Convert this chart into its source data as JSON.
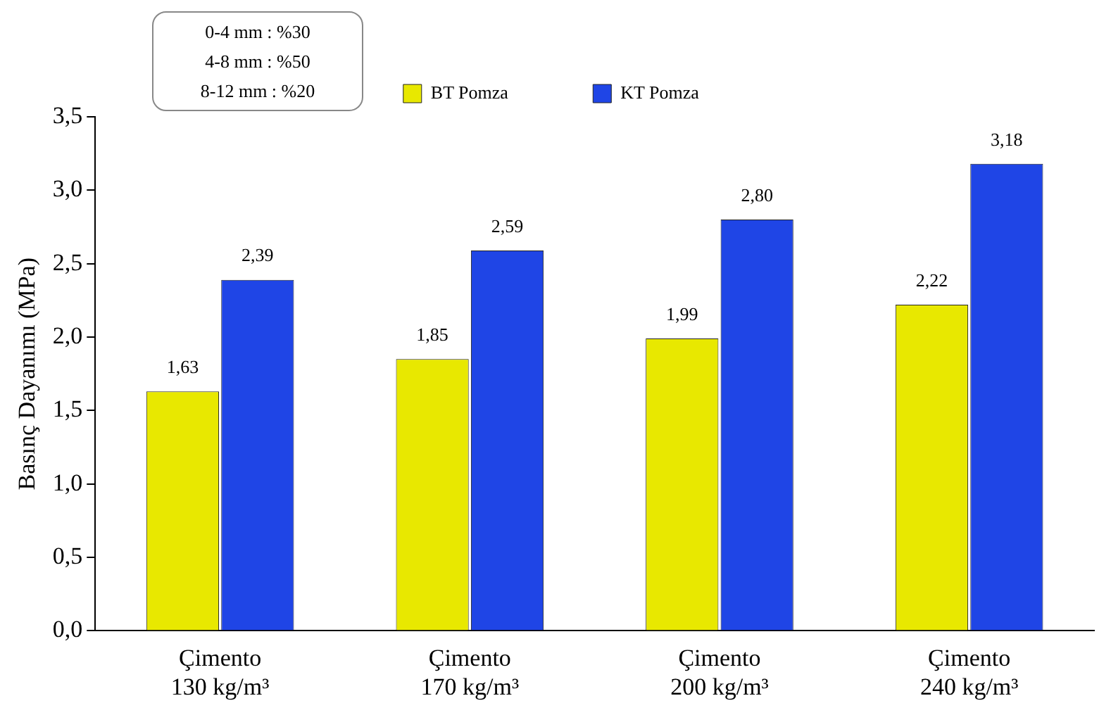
{
  "chart_data": {
    "type": "bar",
    "ylabel": "Basınç Dayanımı (MPa)",
    "categories": [
      "Çimento\n130 kg/m³",
      "Çimento\n170 kg/m³",
      "Çimento\n200 kg/m³",
      "Çimento\n240 kg/m³"
    ],
    "series": [
      {
        "name": "BT Pomza",
        "color": "#e8e800",
        "values": [
          1.63,
          1.85,
          1.99,
          2.22
        ],
        "value_labels": [
          "1,63",
          "1,85",
          "1,99",
          "2,22"
        ]
      },
      {
        "name": "KT Pomza",
        "color": "#1f45e6",
        "values": [
          2.39,
          2.59,
          2.8,
          3.18
        ],
        "value_labels": [
          "2,39",
          "2,59",
          "2,80",
          "3,18"
        ]
      }
    ],
    "ylim": [
      0,
      3.5
    ],
    "yticks": [
      {
        "value": 0,
        "label": "0,0"
      },
      {
        "value": 0.5,
        "label": "0,5"
      },
      {
        "value": 1,
        "label": "1,0"
      },
      {
        "value": 1.5,
        "label": "1,5"
      },
      {
        "value": 2,
        "label": "2,0"
      },
      {
        "value": 2.5,
        "label": "2,5"
      },
      {
        "value": 3,
        "label": "3,0"
      },
      {
        "value": 3.5,
        "label": "3,5"
      }
    ],
    "grid": false,
    "legend": "top",
    "annotations": [
      "0-4 mm : %30",
      "4-8 mm : %50",
      "8-12 mm : %20"
    ]
  }
}
